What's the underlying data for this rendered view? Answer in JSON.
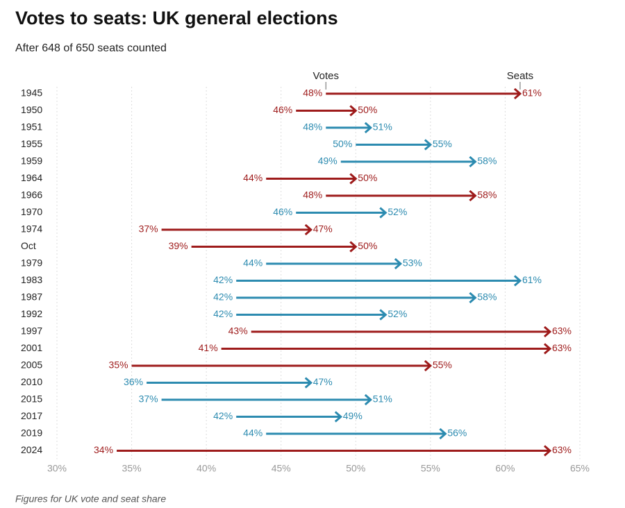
{
  "chart_data": {
    "type": "arrow",
    "title": "Votes to seats: UK general elections",
    "subtitle": "After 648 of 650 seats counted",
    "footnote": "Figures for UK vote and seat share",
    "categories": [
      "1945",
      "1950",
      "1951",
      "1955",
      "1959",
      "1964",
      "1966",
      "1970",
      "1974",
      "Oct",
      "1979",
      "1983",
      "1987",
      "1992",
      "1997",
      "2001",
      "2005",
      "2010",
      "2015",
      "2017",
      "2019",
      "2024"
    ],
    "row_colors": [
      "#9e1b1b",
      "#9e1b1b",
      "#2c8bb0",
      "#2c8bb0",
      "#2c8bb0",
      "#9e1b1b",
      "#9e1b1b",
      "#2c8bb0",
      "#9e1b1b",
      "#9e1b1b",
      "#2c8bb0",
      "#2c8bb0",
      "#2c8bb0",
      "#2c8bb0",
      "#9e1b1b",
      "#9e1b1b",
      "#9e1b1b",
      "#2c8bb0",
      "#2c8bb0",
      "#2c8bb0",
      "#2c8bb0",
      "#9e1b1b"
    ],
    "series": [
      {
        "name": "Votes",
        "values": [
          48,
          46,
          48,
          50,
          49,
          44,
          48,
          46,
          37,
          39,
          44,
          42,
          42,
          42,
          43,
          41,
          35,
          36,
          37,
          42,
          44,
          34
        ],
        "value_labels": [
          "48%",
          "46%",
          "48%",
          "50%",
          "49%",
          "44%",
          "48%",
          "46%",
          "37%",
          "39%",
          "44%",
          "42%",
          "42%",
          "42%",
          "43%",
          "41%",
          "35%",
          "36%",
          "37%",
          "42%",
          "44%",
          "34%"
        ]
      },
      {
        "name": "Seats",
        "values": [
          61,
          50,
          51,
          55,
          58,
          50,
          58,
          52,
          47,
          50,
          53,
          61,
          58,
          52,
          63,
          63,
          55,
          47,
          51,
          49,
          56,
          63
        ],
        "value_labels": [
          "61%",
          "50%",
          "51%",
          "55%",
          "58%",
          "50%",
          "58%",
          "52%",
          "47%",
          "50%",
          "53%",
          "61%",
          "58%",
          "52%",
          "63%",
          "63%",
          "55%",
          "47%",
          "51%",
          "49%",
          "56%",
          "63%"
        ]
      }
    ],
    "xlim": [
      30,
      65
    ],
    "xticks": [
      {
        "value": 30,
        "label": "30%"
      },
      {
        "value": 35,
        "label": "35%"
      },
      {
        "value": 40,
        "label": "40%"
      },
      {
        "value": 45,
        "label": "45%"
      },
      {
        "value": 50,
        "label": "50%"
      },
      {
        "value": 55,
        "label": "55%"
      },
      {
        "value": 60,
        "label": "60%"
      },
      {
        "value": 65,
        "label": "65%"
      }
    ],
    "grid": true
  }
}
